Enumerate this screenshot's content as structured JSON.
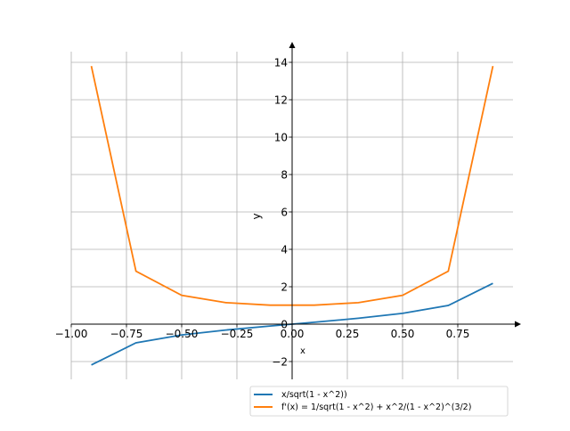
{
  "chart_data": {
    "type": "line",
    "title": "",
    "xlabel": "x",
    "ylabel": "y",
    "xlim": [
      -1.0,
      1.0
    ],
    "ylim": [
      -2.95,
      14.6
    ],
    "grid": true,
    "legend_placement": "lower-right",
    "xticks": [
      -1.0,
      -0.75,
      -0.5,
      -0.25,
      0.0,
      0.25,
      0.5,
      0.75
    ],
    "xtick_labels": [
      "−1.00",
      "−0.75",
      "−0.50",
      "−0.25",
      "0.00",
      "0.25",
      "0.50",
      "0.75"
    ],
    "yticks": [
      -2,
      0,
      2,
      4,
      6,
      8,
      10,
      12,
      14
    ],
    "ytick_labels": [
      "−2",
      "0",
      "2",
      "4",
      "6",
      "8",
      "10",
      "12",
      "14"
    ],
    "series": [
      {
        "name": "x/sqrt(1 - x^2))",
        "color": "#1f77b4",
        "x": [
          -0.909,
          -0.707,
          -0.5,
          -0.3,
          -0.1,
          0.1,
          0.3,
          0.5,
          0.707,
          0.909
        ],
        "y": [
          -2.18,
          -1.0,
          -0.577,
          -0.314,
          -0.1,
          0.1,
          0.314,
          0.577,
          1.0,
          2.18
        ]
      },
      {
        "name": "f'(x) = 1/sqrt(1 - x^2) + x^2/(1 - x^2)^(3/2)",
        "color": "#ff7f0e",
        "x": [
          -0.909,
          -0.707,
          -0.5,
          -0.3,
          -0.1,
          0.1,
          0.3,
          0.5,
          0.707,
          0.909
        ],
        "y": [
          13.8,
          2.83,
          1.54,
          1.15,
          1.015,
          1.015,
          1.15,
          1.54,
          2.83,
          13.8
        ]
      }
    ]
  }
}
